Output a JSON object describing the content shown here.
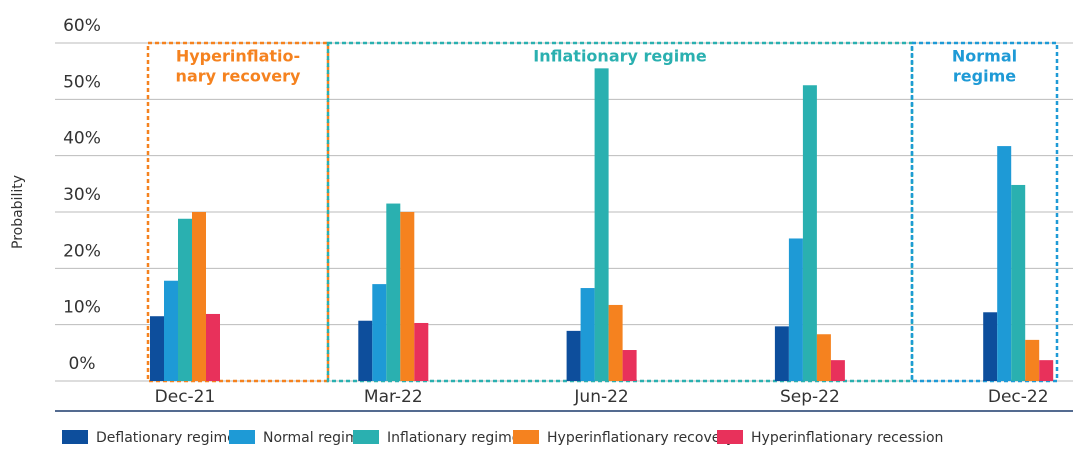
{
  "chart_data": {
    "type": "bar",
    "y_label": "Probability",
    "categories": [
      "Dec-21",
      "Mar-22",
      "Jun-22",
      "Sep-22",
      "Dec-22"
    ],
    "series": [
      {
        "name": "Deflationary regime",
        "color": "#0d4e9c",
        "values": [
          11.5,
          10.7,
          8.9,
          9.7,
          12.2
        ]
      },
      {
        "name": "Normal regime",
        "color": "#1e9ad6",
        "values": [
          17.8,
          17.2,
          16.5,
          25.3,
          41.7
        ]
      },
      {
        "name": "Inflationary regime",
        "color": "#2ab0b0",
        "values": [
          28.8,
          31.5,
          55.5,
          52.5,
          34.8
        ]
      },
      {
        "name": "Hyperinflationary recovery",
        "color": "#f5821f",
        "values": [
          30,
          30,
          13.5,
          8.3,
          7.3
        ]
      },
      {
        "name": "Hyperinflationary recession",
        "color": "#e8315b",
        "values": [
          11.9,
          10.3,
          5.5,
          3.7,
          3.7
        ]
      }
    ],
    "ylim": [
      0,
      60
    ],
    "yticks": [
      {
        "value": 0,
        "label": "0%"
      },
      {
        "value": 10,
        "label": "10%"
      },
      {
        "value": 20,
        "label": "20%"
      },
      {
        "value": 30,
        "label": "30%"
      },
      {
        "value": 40,
        "label": "40%"
      },
      {
        "value": 50,
        "label": "50%"
      },
      {
        "value": 60,
        "label": "60%"
      }
    ],
    "grid": true,
    "legend": "bottom",
    "annotations": [
      {
        "text": [
          "Hyperinflatio-",
          "nary recovery"
        ],
        "color": "#f5821f"
      },
      {
        "text": [
          "Inflationary regime"
        ],
        "color": "#2ab0b0"
      },
      {
        "text": [
          "Normal",
          "regime"
        ],
        "color": "#1e9ad6"
      }
    ]
  }
}
